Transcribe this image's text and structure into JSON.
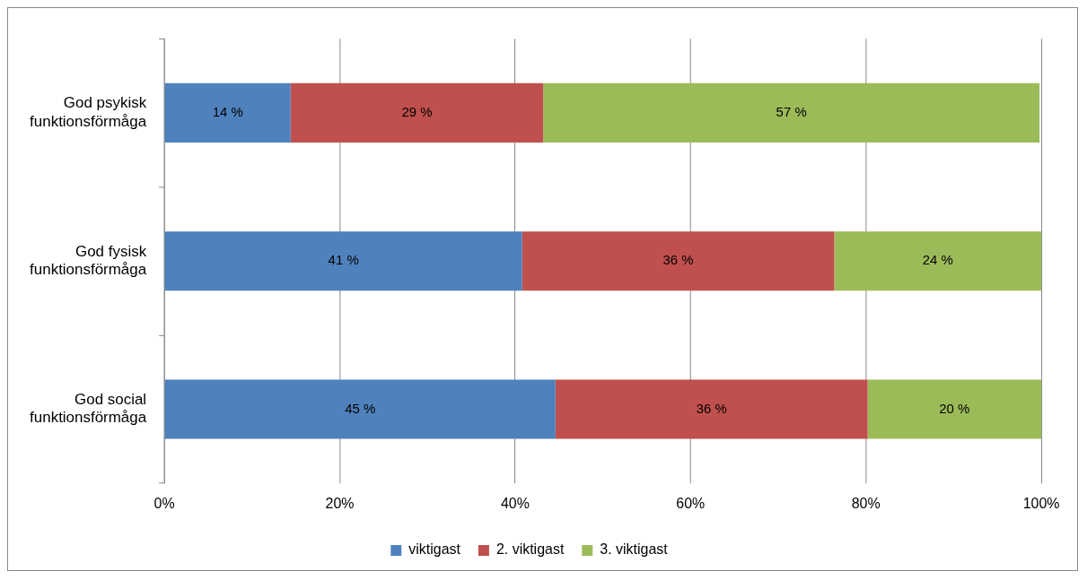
{
  "chart_data": {
    "type": "bar",
    "orientation": "horizontal",
    "stacked": true,
    "categories": [
      "God psykisk\nfunktionsförmåga",
      "God fysisk\nfunktionsförmåga",
      "God social\nfunktionsförmåga"
    ],
    "series": [
      {
        "name": "viktigast",
        "color": "#4f81bd",
        "values": [
          14.4,
          40.8,
          44.6
        ],
        "value_labels": [
          "14 %",
          "41 %",
          "45 %"
        ]
      },
      {
        "name": "2. viktigast",
        "color": "#c0504d",
        "values": [
          28.8,
          35.6,
          35.6
        ],
        "value_labels": [
          "29 %",
          "36 %",
          "36 %"
        ]
      },
      {
        "name": "3. viktigast",
        "color": "#9bbb59",
        "values": [
          56.6,
          23.6,
          19.8
        ],
        "value_labels": [
          "57 %",
          "24 %",
          "20 %"
        ]
      }
    ],
    "xlim": [
      0,
      100
    ],
    "xticks": [
      {
        "value": 0,
        "label": "0%"
      },
      {
        "value": 20,
        "label": "20%"
      },
      {
        "value": 40,
        "label": "40%"
      },
      {
        "value": 60,
        "label": "60%"
      },
      {
        "value": 80,
        "label": "80%"
      },
      {
        "value": 100,
        "label": "100%"
      }
    ],
    "grid": "x",
    "legend": "bottom"
  }
}
